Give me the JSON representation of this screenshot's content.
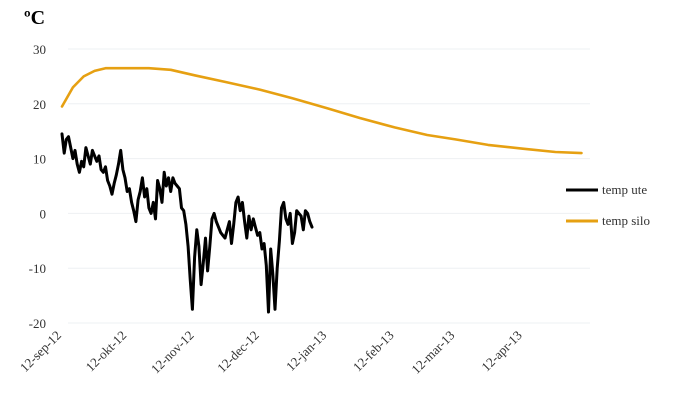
{
  "chart_data": {
    "type": "line",
    "unit_label": "ºC",
    "title": "",
    "xlabel": "",
    "ylabel": "",
    "ylim": [
      -20,
      30
    ],
    "yticks": [
      30,
      20,
      10,
      0,
      -10,
      -20
    ],
    "x_start_date": "2012-09-12",
    "x_end_date": "2013-05-12",
    "xticks": [
      {
        "date": "2012-09-12",
        "label": "12-sep-12"
      },
      {
        "date": "2012-10-12",
        "label": "12-okt-12"
      },
      {
        "date": "2012-11-12",
        "label": "12-nov-12"
      },
      {
        "date": "2012-12-12",
        "label": "12-dec-12"
      },
      {
        "date": "2013-01-12",
        "label": "12-jan-13"
      },
      {
        "date": "2013-02-12",
        "label": "12-feb-13"
      },
      {
        "date": "2013-03-12",
        "label": "12-mar-13"
      },
      {
        "date": "2013-04-12",
        "label": "12-apr-13"
      }
    ],
    "grid": "horizontal",
    "legend_position": "right",
    "series": [
      {
        "name": "temp ute",
        "color": "#000000",
        "points": [
          [
            "2012-09-12",
            14.5
          ],
          [
            "2012-09-13",
            11.0
          ],
          [
            "2012-09-14",
            13.5
          ],
          [
            "2012-09-15",
            14.0
          ],
          [
            "2012-09-16",
            12.0
          ],
          [
            "2012-09-17",
            10.0
          ],
          [
            "2012-09-18",
            11.5
          ],
          [
            "2012-09-19",
            9.0
          ],
          [
            "2012-09-20",
            7.5
          ],
          [
            "2012-09-21",
            9.5
          ],
          [
            "2012-09-22",
            8.5
          ],
          [
            "2012-09-23",
            12.0
          ],
          [
            "2012-09-24",
            10.5
          ],
          [
            "2012-09-25",
            9.0
          ],
          [
            "2012-09-26",
            11.5
          ],
          [
            "2012-09-27",
            10.5
          ],
          [
            "2012-09-28",
            9.5
          ],
          [
            "2012-09-29",
            10.5
          ],
          [
            "2012-09-30",
            8.0
          ],
          [
            "2012-10-01",
            7.5
          ],
          [
            "2012-10-02",
            8.5
          ],
          [
            "2012-10-03",
            6.0
          ],
          [
            "2012-10-04",
            5.0
          ],
          [
            "2012-10-05",
            3.5
          ],
          [
            "2012-10-06",
            5.5
          ],
          [
            "2012-10-07",
            7.0
          ],
          [
            "2012-10-08",
            9.0
          ],
          [
            "2012-10-09",
            11.5
          ],
          [
            "2012-10-10",
            8.0
          ],
          [
            "2012-10-11",
            6.5
          ],
          [
            "2012-10-12",
            4.0
          ],
          [
            "2012-10-13",
            4.5
          ],
          [
            "2012-10-14",
            2.0
          ],
          [
            "2012-10-15",
            0.5
          ],
          [
            "2012-10-16",
            -1.5
          ],
          [
            "2012-10-17",
            2.5
          ],
          [
            "2012-10-18",
            4.0
          ],
          [
            "2012-10-19",
            6.5
          ],
          [
            "2012-10-20",
            3.0
          ],
          [
            "2012-10-21",
            4.5
          ],
          [
            "2012-10-22",
            1.0
          ],
          [
            "2012-10-23",
            0.0
          ],
          [
            "2012-10-24",
            2.0
          ],
          [
            "2012-10-25",
            -1.0
          ],
          [
            "2012-10-26",
            6.0
          ],
          [
            "2012-10-27",
            4.5
          ],
          [
            "2012-10-28",
            2.0
          ],
          [
            "2012-10-29",
            7.5
          ],
          [
            "2012-10-30",
            5.0
          ],
          [
            "2012-10-31",
            6.5
          ],
          [
            "2012-11-01",
            4.0
          ],
          [
            "2012-11-02",
            6.5
          ],
          [
            "2012-11-03",
            5.5
          ],
          [
            "2012-11-04",
            5.0
          ],
          [
            "2012-11-05",
            4.5
          ],
          [
            "2012-11-06",
            1.0
          ],
          [
            "2012-11-07",
            0.5
          ],
          [
            "2012-11-08",
            -2.0
          ],
          [
            "2012-11-09",
            -6.0
          ],
          [
            "2012-11-10",
            -12.0
          ],
          [
            "2012-11-11",
            -17.5
          ],
          [
            "2012-11-12",
            -8.0
          ],
          [
            "2012-11-13",
            -3.0
          ],
          [
            "2012-11-14",
            -6.0
          ],
          [
            "2012-11-15",
            -13.0
          ],
          [
            "2012-11-16",
            -9.0
          ],
          [
            "2012-11-17",
            -4.5
          ],
          [
            "2012-11-18",
            -10.5
          ],
          [
            "2012-11-19",
            -6.0
          ],
          [
            "2012-11-20",
            -1.0
          ],
          [
            "2012-11-21",
            0.0
          ],
          [
            "2012-11-22",
            -1.5
          ],
          [
            "2012-11-23",
            -2.5
          ],
          [
            "2012-11-24",
            -3.5
          ],
          [
            "2012-11-25",
            -4.0
          ],
          [
            "2012-11-26",
            -4.5
          ],
          [
            "2012-11-27",
            -3.0
          ],
          [
            "2012-11-28",
            -1.5
          ],
          [
            "2012-11-29",
            -5.5
          ],
          [
            "2012-11-30",
            -2.0
          ],
          [
            "2012-12-01",
            2.0
          ],
          [
            "2012-12-02",
            3.0
          ],
          [
            "2012-12-03",
            0.5
          ],
          [
            "2012-12-04",
            2.0
          ],
          [
            "2012-12-05",
            -1.5
          ],
          [
            "2012-12-06",
            -4.5
          ],
          [
            "2012-12-07",
            -0.5
          ],
          [
            "2012-12-08",
            -3.0
          ],
          [
            "2012-12-09",
            -1.0
          ],
          [
            "2012-12-10",
            -2.5
          ],
          [
            "2012-12-11",
            -4.0
          ],
          [
            "2012-12-12",
            -3.5
          ],
          [
            "2012-12-13",
            -6.5
          ],
          [
            "2012-12-14",
            -5.5
          ],
          [
            "2012-12-15",
            -9.5
          ],
          [
            "2012-12-16",
            -18.0
          ],
          [
            "2012-12-17",
            -6.5
          ],
          [
            "2012-12-18",
            -11.0
          ],
          [
            "2012-12-19",
            -17.5
          ],
          [
            "2012-12-20",
            -10.0
          ],
          [
            "2012-12-21",
            -5.0
          ],
          [
            "2012-12-22",
            1.0
          ],
          [
            "2012-12-23",
            2.0
          ],
          [
            "2012-12-24",
            -1.0
          ],
          [
            "2012-12-25",
            -2.0
          ],
          [
            "2012-12-26",
            0.0
          ],
          [
            "2012-12-27",
            -5.5
          ],
          [
            "2012-12-28",
            -3.5
          ],
          [
            "2012-12-29",
            0.5
          ],
          [
            "2012-12-30",
            0.0
          ],
          [
            "2012-12-31",
            -0.5
          ],
          [
            "2013-01-01",
            -3.0
          ],
          [
            "2013-01-02",
            0.5
          ],
          [
            "2013-01-03",
            0.0
          ],
          [
            "2013-01-04",
            -1.5
          ],
          [
            "2013-01-05",
            -2.5
          ]
        ]
      },
      {
        "name": "temp silo",
        "color": "#e6a012",
        "points": [
          [
            "2012-09-12",
            19.5
          ],
          [
            "2012-09-17",
            23.0
          ],
          [
            "2012-09-22",
            25.0
          ],
          [
            "2012-09-27",
            26.0
          ],
          [
            "2012-10-02",
            26.5
          ],
          [
            "2012-10-12",
            26.5
          ],
          [
            "2012-10-22",
            26.5
          ],
          [
            "2012-11-01",
            26.2
          ],
          [
            "2012-11-12",
            25.2
          ],
          [
            "2012-11-26",
            24.0
          ],
          [
            "2012-12-12",
            22.6
          ],
          [
            "2012-12-27",
            21.0
          ],
          [
            "2013-01-12",
            19.2
          ],
          [
            "2013-01-27",
            17.4
          ],
          [
            "2013-02-12",
            15.7
          ],
          [
            "2013-02-27",
            14.3
          ],
          [
            "2013-03-12",
            13.5
          ],
          [
            "2013-03-27",
            12.5
          ],
          [
            "2013-04-12",
            11.8
          ],
          [
            "2013-04-27",
            11.2
          ],
          [
            "2013-05-09",
            11.0
          ]
        ]
      }
    ]
  }
}
